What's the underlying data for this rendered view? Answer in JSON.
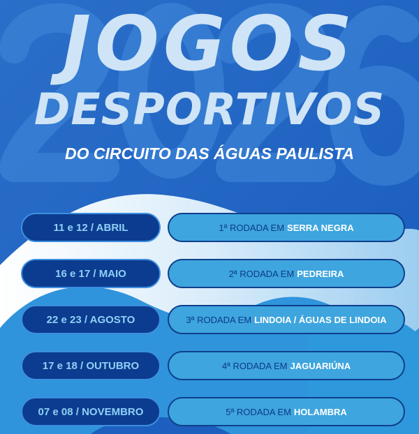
{
  "header": {
    "background_number": "2026",
    "title_line1": "JOGOS",
    "title_line2": "DESPORTIVOS",
    "subtitle": "DO CIRCUITO DAS ÁGUAS PAULISTA"
  },
  "schedule": [
    {
      "date": "11 e 12 / ABRIL",
      "round": "1ª RODADA EM",
      "city": "SERRA NEGRA"
    },
    {
      "date": "16 e 17 / MAIO",
      "round": "2ª RODADA EM",
      "city": "PEDREIRA"
    },
    {
      "date": "22 e 23 / AGOSTO",
      "round": "3ª RODADA EM",
      "city": "LINDOIA / ÁGUAS DE LINDOIA"
    },
    {
      "date": "17 e 18 / OUTUBRO",
      "round": "4ª RODADA EM",
      "city": "JAGUARIÚNA"
    },
    {
      "date": "07 e 08 / NOVEMBRO",
      "round": "5ª RODADA EM",
      "city": "HOLAMBRA"
    }
  ],
  "colors": {
    "background": "#1f68c8",
    "date_pill": "#0c3c8f",
    "round_pill": "#3ea5de",
    "title": "#cfe4f6"
  }
}
